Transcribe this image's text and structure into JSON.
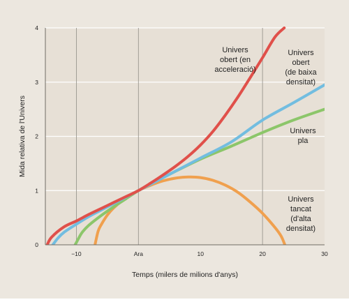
{
  "chart_data": {
    "type": "line",
    "title": "",
    "xlabel": "Temps (milers de milions d'anys)",
    "ylabel": "Mida relativa de l'Univers",
    "xlim": [
      -15,
      30
    ],
    "ylim": [
      0,
      4
    ],
    "x_ticks": [
      {
        "value": -10,
        "label": "−10"
      },
      {
        "value": 0,
        "label": "Ara"
      },
      {
        "value": 10,
        "label": "10"
      },
      {
        "value": 20,
        "label": "20"
      },
      {
        "value": 30,
        "label": "30"
      }
    ],
    "y_ticks": [
      0,
      1,
      2,
      3,
      4
    ],
    "vertical_grid": [
      -10,
      0,
      20
    ],
    "horizontal_grid": [
      1,
      2,
      3,
      4
    ],
    "grid": true,
    "series": [
      {
        "name": "Univers obert (en acceleració)",
        "color": "#e0504a",
        "points": [
          [
            -14.7,
            0
          ],
          [
            -14,
            0.14
          ],
          [
            -12,
            0.33
          ],
          [
            -10,
            0.44
          ],
          [
            -8,
            0.56
          ],
          [
            -6,
            0.67
          ],
          [
            -4,
            0.78
          ],
          [
            -2,
            0.89
          ],
          [
            0,
            1
          ],
          [
            2,
            1.14
          ],
          [
            4,
            1.29
          ],
          [
            6,
            1.45
          ],
          [
            8,
            1.63
          ],
          [
            10,
            1.84
          ],
          [
            12,
            2.09
          ],
          [
            14,
            2.39
          ],
          [
            16,
            2.72
          ],
          [
            18,
            3.08
          ],
          [
            20,
            3.45
          ],
          [
            22,
            3.83
          ],
          [
            23.5,
            4.0
          ]
        ]
      },
      {
        "name": "Univers obert (de baixa densitat)",
        "color": "#72bde0",
        "points": [
          [
            -13.8,
            0
          ],
          [
            -13,
            0.12
          ],
          [
            -12,
            0.23
          ],
          [
            -10,
            0.38
          ],
          [
            -8,
            0.52
          ],
          [
            -6,
            0.64
          ],
          [
            -4,
            0.76
          ],
          [
            -2,
            0.88
          ],
          [
            0,
            1
          ],
          [
            2,
            1.12
          ],
          [
            5,
            1.3
          ],
          [
            10,
            1.6
          ],
          [
            15,
            1.9
          ],
          [
            20,
            2.3
          ],
          [
            25,
            2.62
          ],
          [
            30,
            2.95
          ]
        ]
      },
      {
        "name": "Univers pla",
        "color": "#8cc66a",
        "points": [
          [
            -10.2,
            0
          ],
          [
            -9.5,
            0.15
          ],
          [
            -9,
            0.24
          ],
          [
            -8,
            0.36
          ],
          [
            -6,
            0.54
          ],
          [
            -4,
            0.7
          ],
          [
            -2,
            0.85
          ],
          [
            0,
            1
          ],
          [
            2,
            1.12
          ],
          [
            5,
            1.3
          ],
          [
            10,
            1.58
          ],
          [
            15,
            1.82
          ],
          [
            20,
            2.07
          ],
          [
            25,
            2.3
          ],
          [
            30,
            2.5
          ]
        ]
      },
      {
        "name": "Univers tancat (d'alta densitat)",
        "color": "#f0a04e",
        "points": [
          [
            -7,
            0
          ],
          [
            -6.5,
            0.25
          ],
          [
            -6,
            0.37
          ],
          [
            -5,
            0.55
          ],
          [
            -4,
            0.68
          ],
          [
            -2,
            0.87
          ],
          [
            0,
            1
          ],
          [
            2,
            1.1
          ],
          [
            4,
            1.18
          ],
          [
            6,
            1.23
          ],
          [
            8,
            1.25
          ],
          [
            10,
            1.24
          ],
          [
            12,
            1.19
          ],
          [
            14,
            1.1
          ],
          [
            16,
            0.97
          ],
          [
            18,
            0.79
          ],
          [
            20,
            0.58
          ],
          [
            22,
            0.32
          ],
          [
            23,
            0.16
          ],
          [
            23.6,
            0
          ]
        ]
      }
    ],
    "annotations": [
      {
        "series": 0,
        "lines": [
          "Univers",
          "obert (en",
          "acceleració)"
        ]
      },
      {
        "series": 1,
        "lines": [
          "Univers",
          "obert",
          "(de baixa",
          "densitat)"
        ]
      },
      {
        "series": 2,
        "lines": [
          "Univers",
          "pla"
        ]
      },
      {
        "series": 3,
        "lines": [
          "Univers",
          "tancat",
          "(d'alta",
          "densitat)"
        ]
      }
    ]
  }
}
